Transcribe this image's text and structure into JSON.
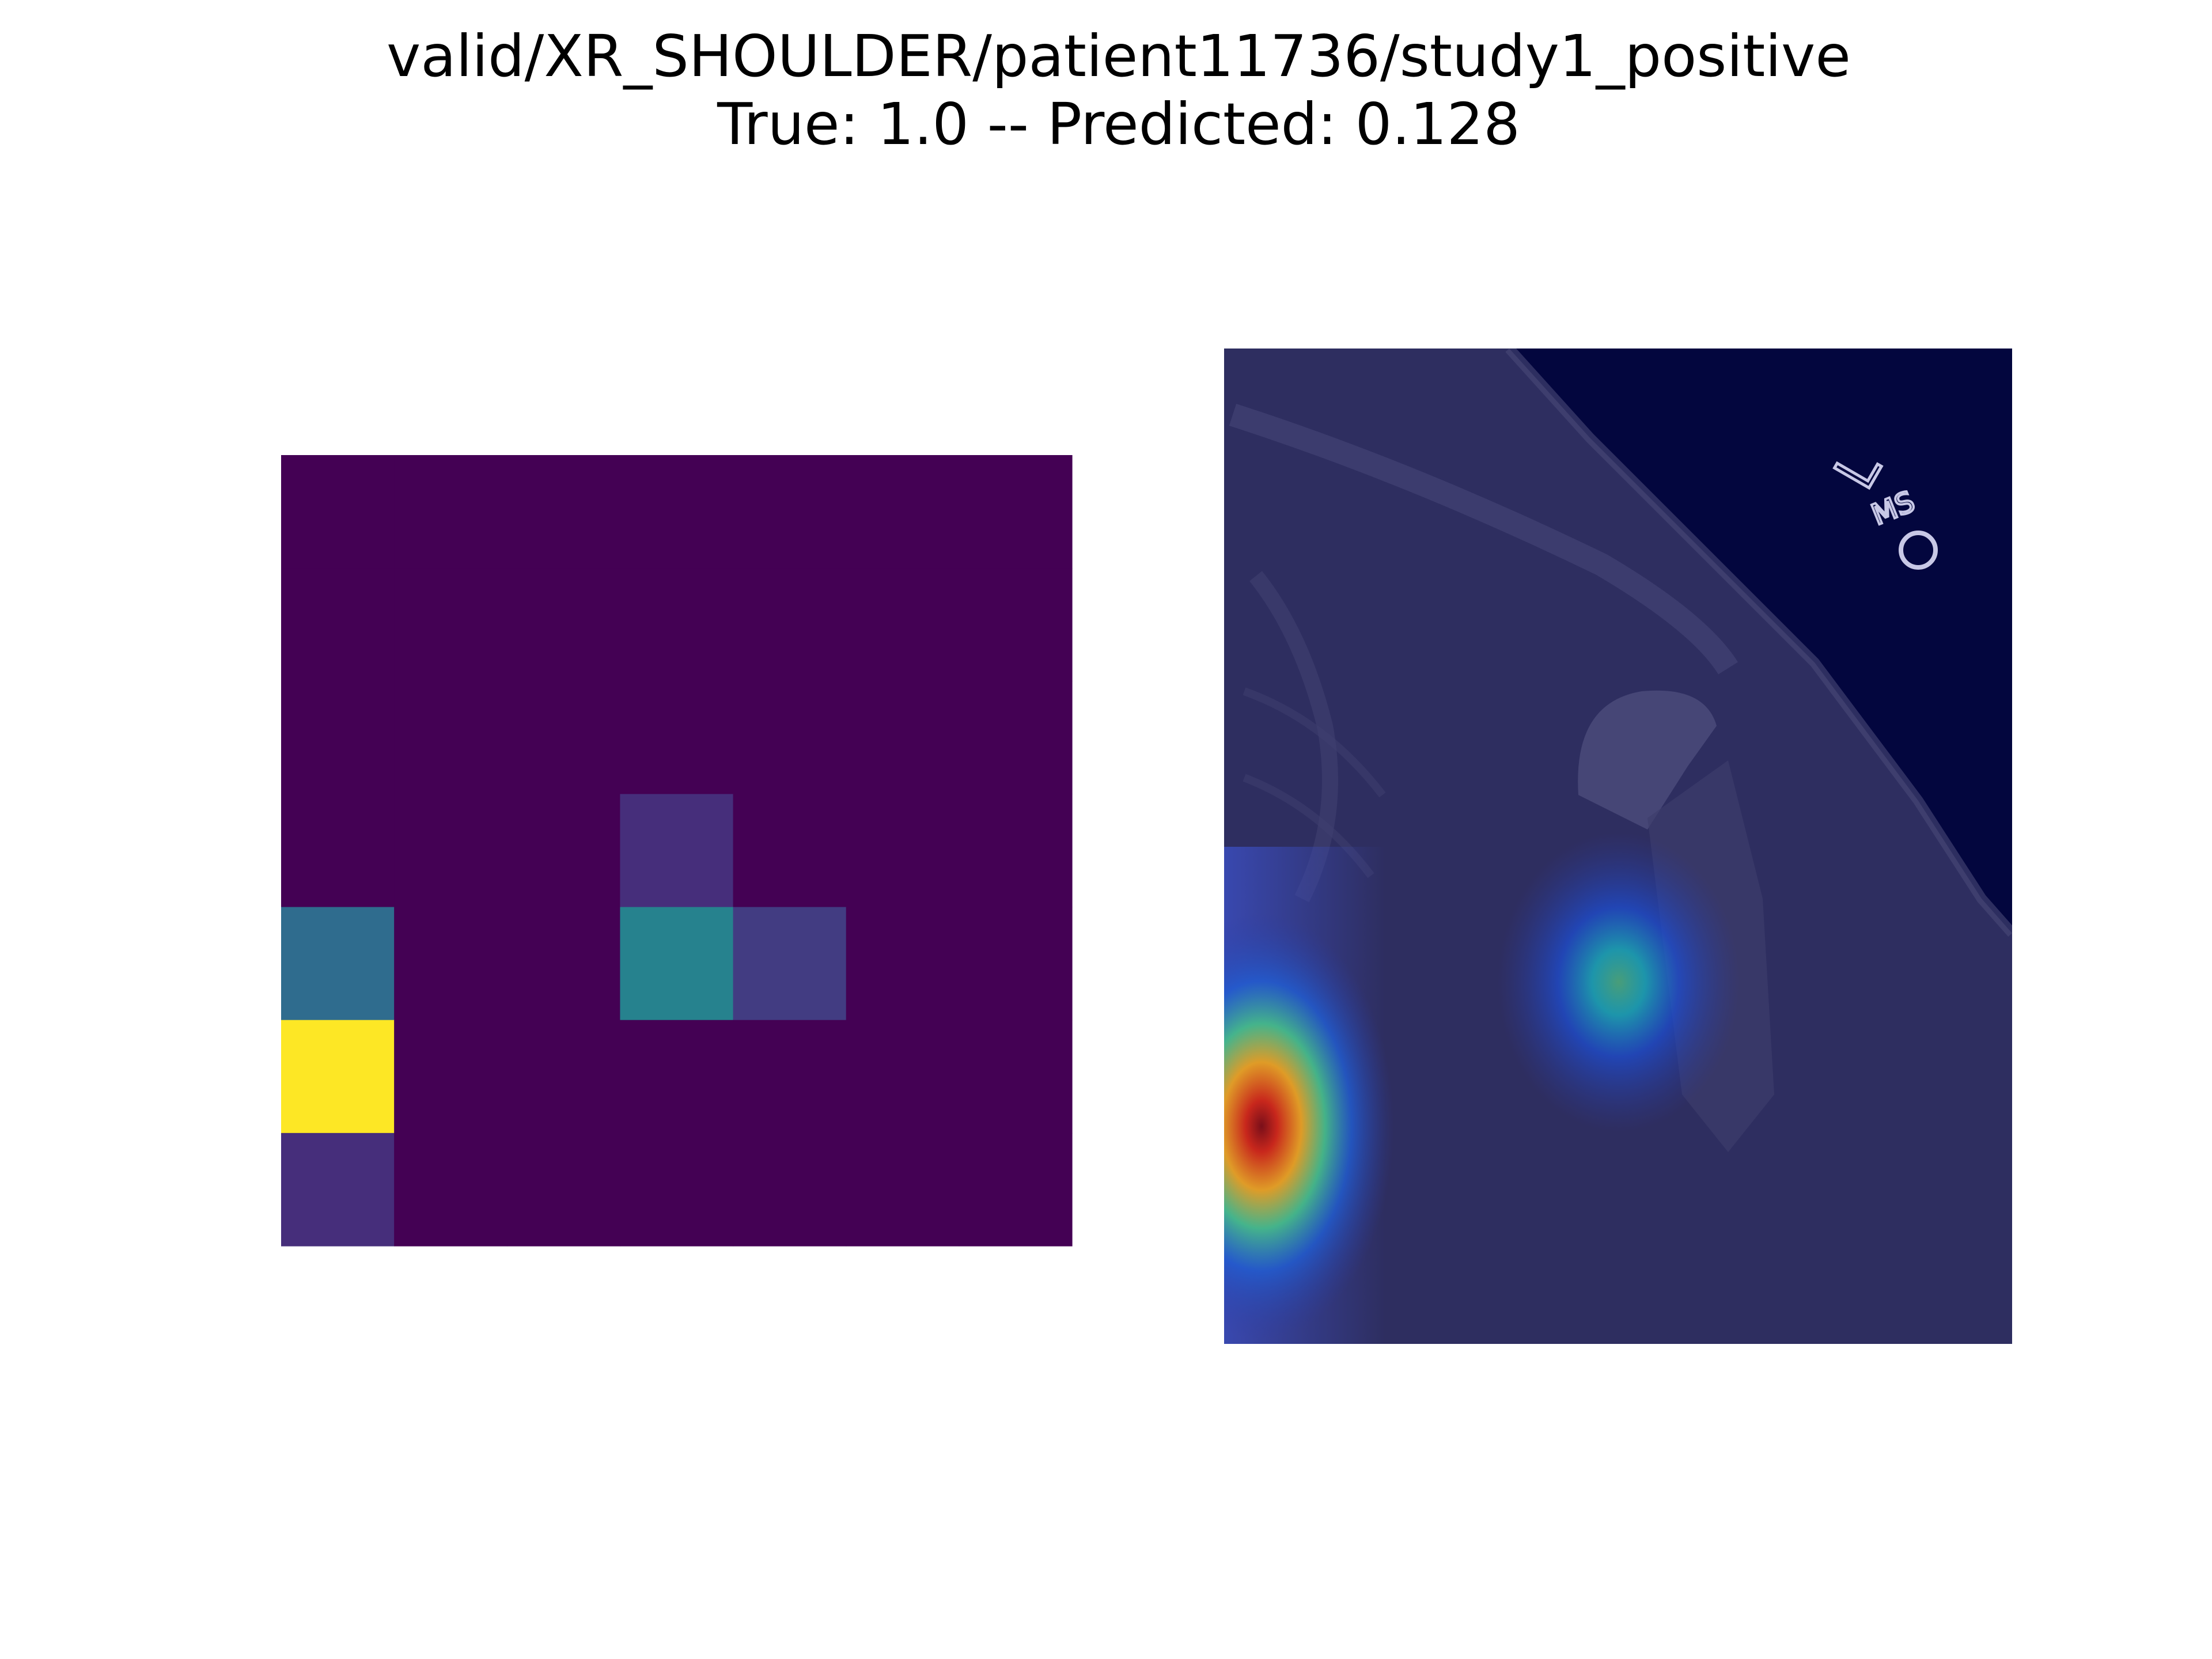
{
  "chart_data": [
    {
      "type": "heatmap",
      "title": "valid/XR_SHOULDER/patient11736/study1_positive",
      "subtitle": "True: 1.0 -- Predicted: 0.128",
      "panel": "activation-grid",
      "rows": 7,
      "cols": 7,
      "colormap": "viridis",
      "values": [
        [
          0,
          0,
          0,
          0,
          0,
          0,
          0
        ],
        [
          0,
          0,
          0,
          0,
          0,
          0,
          0
        ],
        [
          0,
          0,
          0,
          0,
          0,
          0,
          0
        ],
        [
          0,
          0,
          0,
          0.15,
          0,
          0,
          0
        ],
        [
          0.4,
          0,
          0,
          0.5,
          0.2,
          0,
          0
        ],
        [
          1.0,
          0,
          0,
          0,
          0,
          0,
          0
        ],
        [
          0.15,
          0,
          0,
          0,
          0,
          0,
          0
        ]
      ]
    },
    {
      "type": "heatmap",
      "panel": "xray-overlay",
      "colormap": "jet",
      "hotspots": [
        {
          "row": 5,
          "col": 0,
          "value": 1.0
        },
        {
          "row": 4,
          "col": 3.5,
          "value": 0.5
        }
      ],
      "marker_text": [
        "L",
        "MS"
      ]
    }
  ],
  "colors": {
    "background": "#ffffff",
    "viridis_low": "#440154",
    "viridis_high": "#fde725",
    "xray_base": "#2d2d5e",
    "xray_dark": "#03063e"
  }
}
